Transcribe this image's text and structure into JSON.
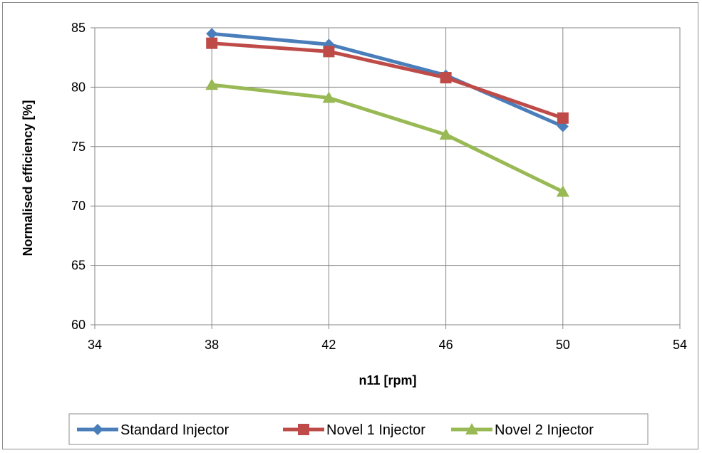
{
  "chart_data": {
    "type": "line",
    "xlabel": "n11 [rpm]",
    "ylabel": "Normalised efficiency [%]",
    "xlim": [
      34,
      54
    ],
    "ylim": [
      60,
      85
    ],
    "xticks": [
      34,
      38,
      42,
      46,
      50,
      54
    ],
    "yticks": [
      60,
      65,
      70,
      75,
      80,
      85
    ],
    "grid": true,
    "legend_position": "bottom",
    "x": [
      38,
      42,
      46,
      50
    ],
    "series": [
      {
        "name": "Standard Injector",
        "values": [
          84.5,
          83.6,
          81.0,
          76.7
        ],
        "color": "#4a7ebb",
        "marker": "diamond"
      },
      {
        "name": "Novel 1 Injector",
        "values": [
          83.7,
          83.0,
          80.8,
          77.4
        ],
        "color": "#be4b48",
        "marker": "square"
      },
      {
        "name": "Novel 2 Injector",
        "values": [
          80.2,
          79.1,
          76.0,
          71.2
        ],
        "color": "#98b954",
        "marker": "triangle"
      }
    ]
  }
}
